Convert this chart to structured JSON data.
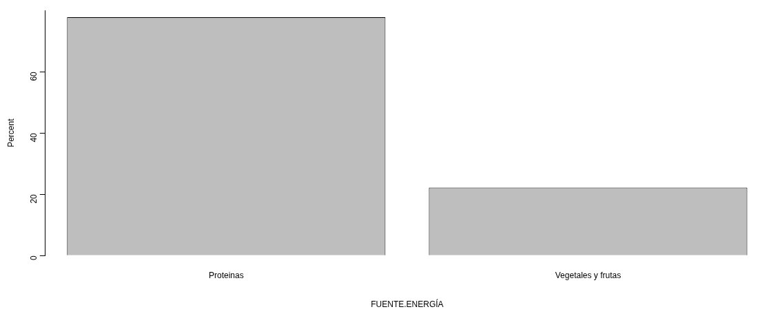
{
  "chart_data": {
    "type": "bar",
    "xlabel": "FUENTE.ENERGÍA",
    "ylabel": "Percent",
    "categories": [
      "Proteinas",
      "Vegetales y frutas"
    ],
    "values": [
      77.8,
      22.2
    ],
    "color": "#bebebe",
    "ylim": [
      0,
      80
    ],
    "yticks": [
      0,
      20,
      40,
      60
    ],
    "grid": false,
    "legend": false
  }
}
